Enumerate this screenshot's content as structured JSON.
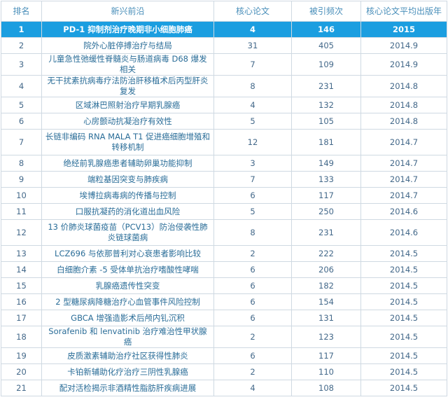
{
  "headers": [
    "排名",
    "新兴前沿",
    "核心论文",
    "被引频次",
    "核心论文平均出版年"
  ],
  "rows": [
    {
      "rank": "1",
      "topic": "PD-1 抑制剂治疗晚期非小细胞肺癌",
      "papers": "4",
      "citations": "146",
      "year": "2015"
    },
    {
      "rank": "2",
      "topic": "院外心脏停搏治疗与结局",
      "papers": "31",
      "citations": "405",
      "year": "2014.9"
    },
    {
      "rank": "3",
      "topic": "儿童急性弛缓性脊髓炎与肠道病毒 D68 爆发相关",
      "papers": "7",
      "citations": "109",
      "year": "2014.9"
    },
    {
      "rank": "4",
      "topic": "无干扰素抗病毒疗法防治肝移植术后丙型肝炎复发",
      "papers": "8",
      "citations": "231",
      "year": "2014.8"
    },
    {
      "rank": "5",
      "topic": "区域淋巴照射治疗早期乳腺癌",
      "papers": "4",
      "citations": "132",
      "year": "2014.8"
    },
    {
      "rank": "6",
      "topic": "心房颤动抗凝治疗有效性",
      "papers": "5",
      "citations": "105",
      "year": "2014.8"
    },
    {
      "rank": "7",
      "topic": "长链非编码 RNA MALA T1 促进癌细胞增殖和转移机制",
      "papers": "12",
      "citations": "181",
      "year": "2014.7"
    },
    {
      "rank": "8",
      "topic": "绝经前乳腺癌患者辅助卵巢功能抑制",
      "papers": "3",
      "citations": "149",
      "year": "2014.7"
    },
    {
      "rank": "9",
      "topic": "端粒基因突变与肺疾病",
      "papers": "7",
      "citations": "133",
      "year": "2014.7"
    },
    {
      "rank": "10",
      "topic": "埃博拉病毒病的传播与控制",
      "papers": "6",
      "citations": "117",
      "year": "2014.7"
    },
    {
      "rank": "11",
      "topic": "口服抗凝药的消化道出血风险",
      "papers": "5",
      "citations": "250",
      "year": "2014.6"
    },
    {
      "rank": "12",
      "topic": "13 价肺炎球菌疫苗（PCV13）防治侵袭性肺炎链球菌病",
      "papers": "8",
      "citations": "231",
      "year": "2014.6"
    },
    {
      "rank": "13",
      "topic": "LCZ696 与依那普利对心衰患者影响比较",
      "papers": "2",
      "citations": "222",
      "year": "2014.5"
    },
    {
      "rank": "14",
      "topic": "白细胞介素 -5 受体单抗治疗嗜酸性哮喘",
      "papers": "6",
      "citations": "206",
      "year": "2014.5"
    },
    {
      "rank": "15",
      "topic": "乳腺癌遗传性突变",
      "papers": "6",
      "citations": "182",
      "year": "2014.5"
    },
    {
      "rank": "16",
      "topic": "2 型糖尿病降糖治疗心血管事件风险控制",
      "papers": "6",
      "citations": "154",
      "year": "2014.5"
    },
    {
      "rank": "17",
      "topic": "GBCA 增强造影术后颅内钆沉积",
      "papers": "6",
      "citations": "131",
      "year": "2014.5"
    },
    {
      "rank": "18",
      "topic": "Sorafenib 和 lenvatinib 治疗难治性甲状腺癌",
      "papers": "2",
      "citations": "123",
      "year": "2014.5"
    },
    {
      "rank": "19",
      "topic": "皮质激素辅助治疗社区获得性肺炎",
      "papers": "6",
      "citations": "117",
      "year": "2014.5"
    },
    {
      "rank": "20",
      "topic": "卡铂新辅助化疗治疗三阴性乳腺癌",
      "papers": "2",
      "citations": "110",
      "year": "2014.5"
    },
    {
      "rank": "21",
      "topic": "配对活检揭示非酒精性脂肪肝疾病进展",
      "papers": "4",
      "citations": "108",
      "year": "2014.5"
    }
  ]
}
